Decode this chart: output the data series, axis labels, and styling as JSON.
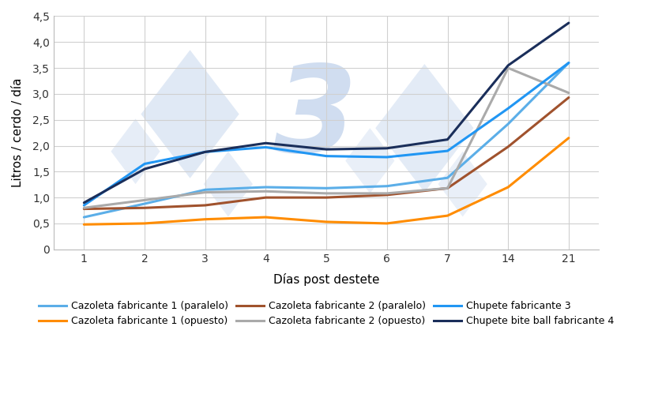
{
  "x_positions": [
    0,
    1,
    2,
    3,
    4,
    5,
    6,
    7,
    8
  ],
  "x_labels": [
    "1",
    "2",
    "3",
    "4",
    "5",
    "6",
    "7",
    "14",
    "21"
  ],
  "series": [
    {
      "name": "Cazoleta fabricante 1 (paralelo)",
      "color": "#5BAEE8",
      "linewidth": 2.2,
      "values": [
        0.62,
        0.88,
        1.15,
        1.2,
        1.18,
        1.22,
        1.38,
        2.42,
        3.6
      ]
    },
    {
      "name": "Cazoleta fabricante 1 (opuesto)",
      "color": "#FF8C00",
      "linewidth": 2.2,
      "values": [
        0.48,
        0.5,
        0.58,
        0.62,
        0.53,
        0.5,
        0.65,
        1.2,
        2.15
      ]
    },
    {
      "name": "Cazoleta fabricante 2 (paralelo)",
      "color": "#A0522D",
      "linewidth": 2.2,
      "values": [
        0.78,
        0.8,
        0.85,
        1.0,
        1.0,
        1.05,
        1.18,
        1.98,
        2.93
      ]
    },
    {
      "name": "Cazoleta fabricante 2 (opuesto)",
      "color": "#AAAAAA",
      "linewidth": 2.2,
      "values": [
        0.8,
        0.95,
        1.1,
        1.12,
        1.08,
        1.08,
        1.18,
        3.5,
        3.02
      ]
    },
    {
      "name": "Chupete fabricante 3",
      "color": "#2196F3",
      "linewidth": 2.2,
      "values": [
        0.85,
        1.65,
        1.88,
        1.97,
        1.8,
        1.78,
        1.9,
        2.72,
        3.6
      ]
    },
    {
      "name": "Chupete bite ball fabricante 4",
      "color": "#1A2E5A",
      "linewidth": 2.2,
      "values": [
        0.9,
        1.55,
        1.88,
        2.05,
        1.93,
        1.95,
        2.12,
        3.55,
        4.37
      ]
    }
  ],
  "xlabel": "Días post destete",
  "ylabel": "Litros / cerdo / día",
  "ylim": [
    0,
    4.5
  ],
  "yticks": [
    0,
    0.5,
    1.0,
    1.5,
    2.0,
    2.5,
    3.0,
    3.5,
    4.0,
    4.5
  ],
  "ytick_labels": [
    "0",
    "0,5",
    "1,0",
    "1,5",
    "2,0",
    "2,5",
    "3,0",
    "3,5",
    "4,0",
    "4,5"
  ],
  "background_color": "#FFFFFF",
  "grid_color": "#D0D0D0",
  "wm_color": "#C8D8EE",
  "legend_order": [
    0,
    1,
    2,
    3,
    4,
    5
  ]
}
